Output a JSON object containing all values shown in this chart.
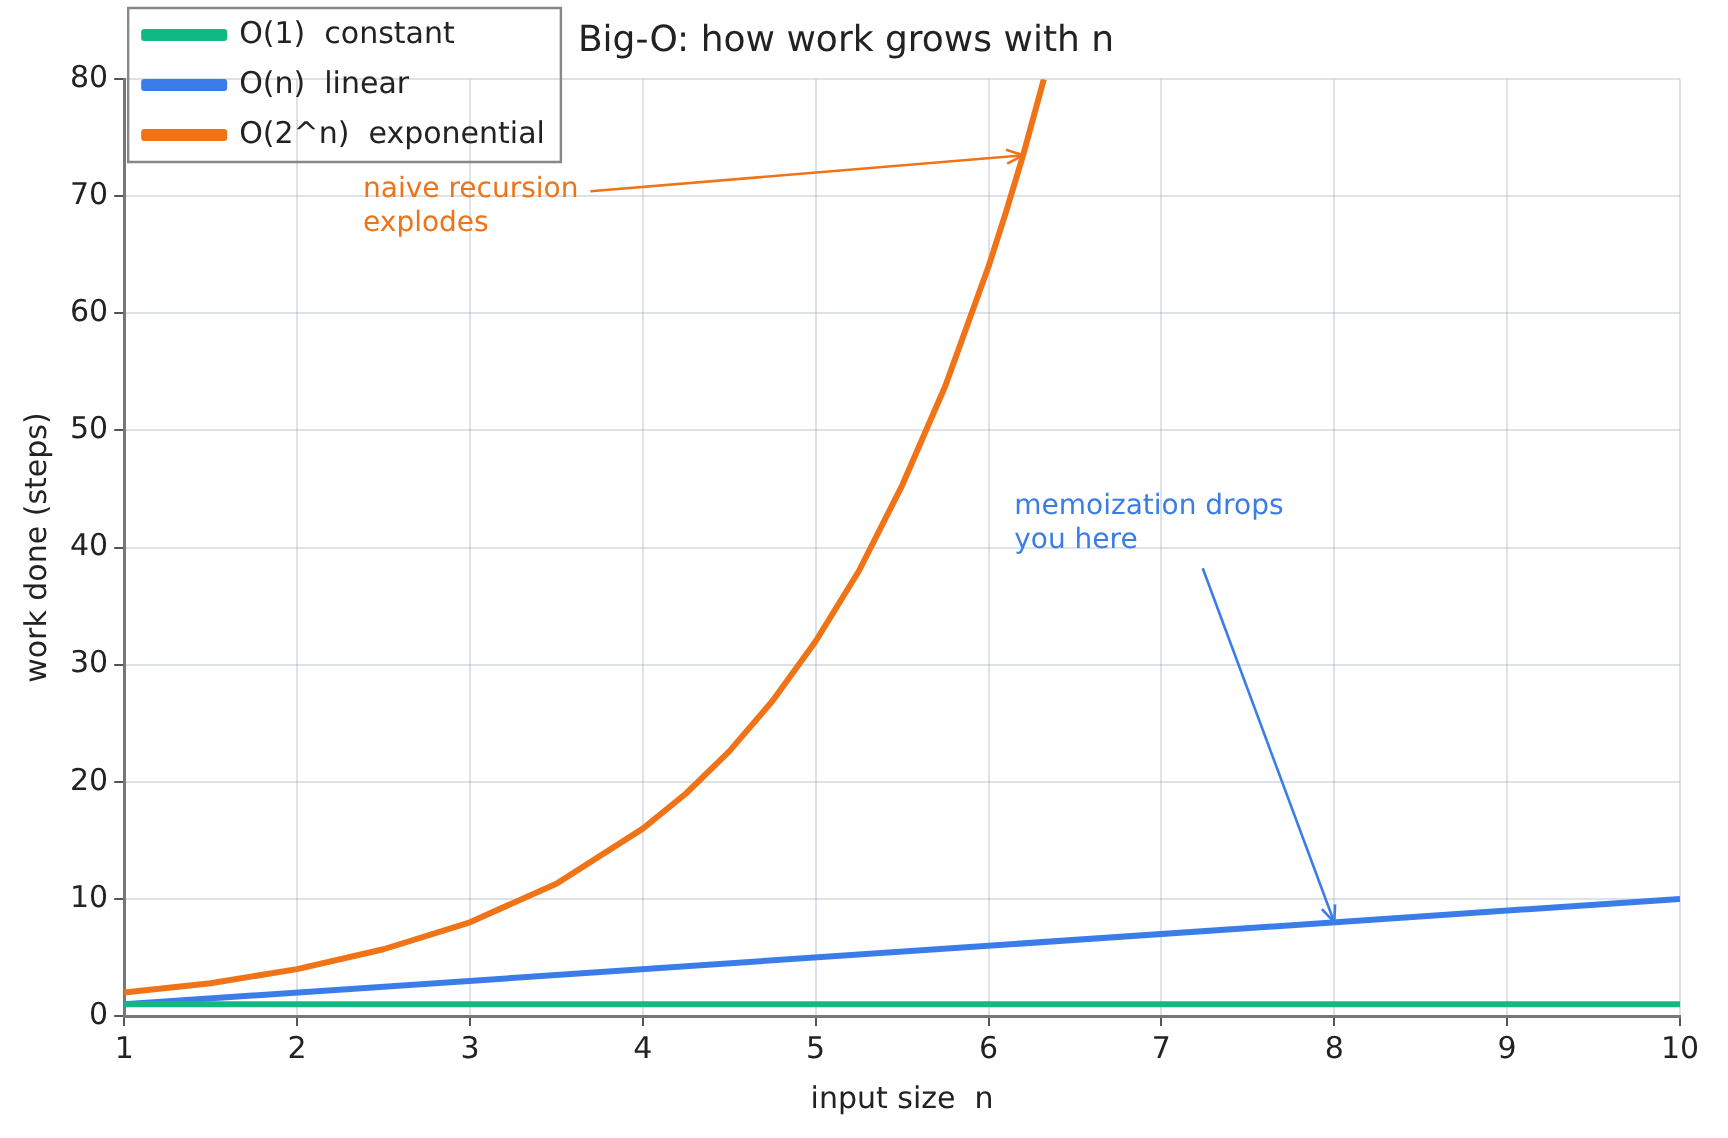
{
  "chart_data": {
    "type": "line",
    "title": "Big-O: how work grows with n",
    "xlabel": "input size  n",
    "ylabel": "work done (steps)",
    "xlim": [
      1,
      10
    ],
    "xticks": [
      1,
      2,
      3,
      4,
      5,
      6,
      7,
      8,
      9,
      10
    ],
    "ylim": [
      0,
      80
    ],
    "yticks": [
      0,
      10,
      20,
      30,
      40,
      50,
      60,
      70,
      80
    ],
    "grid": true,
    "legend": "top left",
    "marker": "none",
    "line_style": "solid",
    "series": [
      {
        "name": "O(1)  constant",
        "color": "#10b981",
        "x": [
          1,
          10
        ],
        "values": [
          1,
          1
        ]
      },
      {
        "name": "O(n)  linear",
        "color": "#3b7de8",
        "x": [
          1,
          10
        ],
        "values": [
          1,
          10
        ]
      },
      {
        "name": "O(2^n)  exponential",
        "color": "#f07417",
        "x": [
          1,
          1.5,
          2,
          2.5,
          3,
          3.5,
          4,
          4.25,
          4.5,
          4.75,
          5,
          5.25,
          5.5,
          5.75,
          6,
          6.1,
          6.2,
          6.32
        ],
        "values": [
          2,
          2.8,
          4,
          5.7,
          8,
          11.3,
          16,
          19,
          22.6,
          26.9,
          32,
          38,
          45.3,
          53.8,
          64,
          68.6,
          73.5,
          80
        ]
      }
    ],
    "annotations": [
      {
        "text": "naive recursion explodes",
        "x": 6.2,
        "y": 73.5
      },
      {
        "text": "memoization drops you here",
        "x": 8,
        "y": 8
      }
    ]
  }
}
